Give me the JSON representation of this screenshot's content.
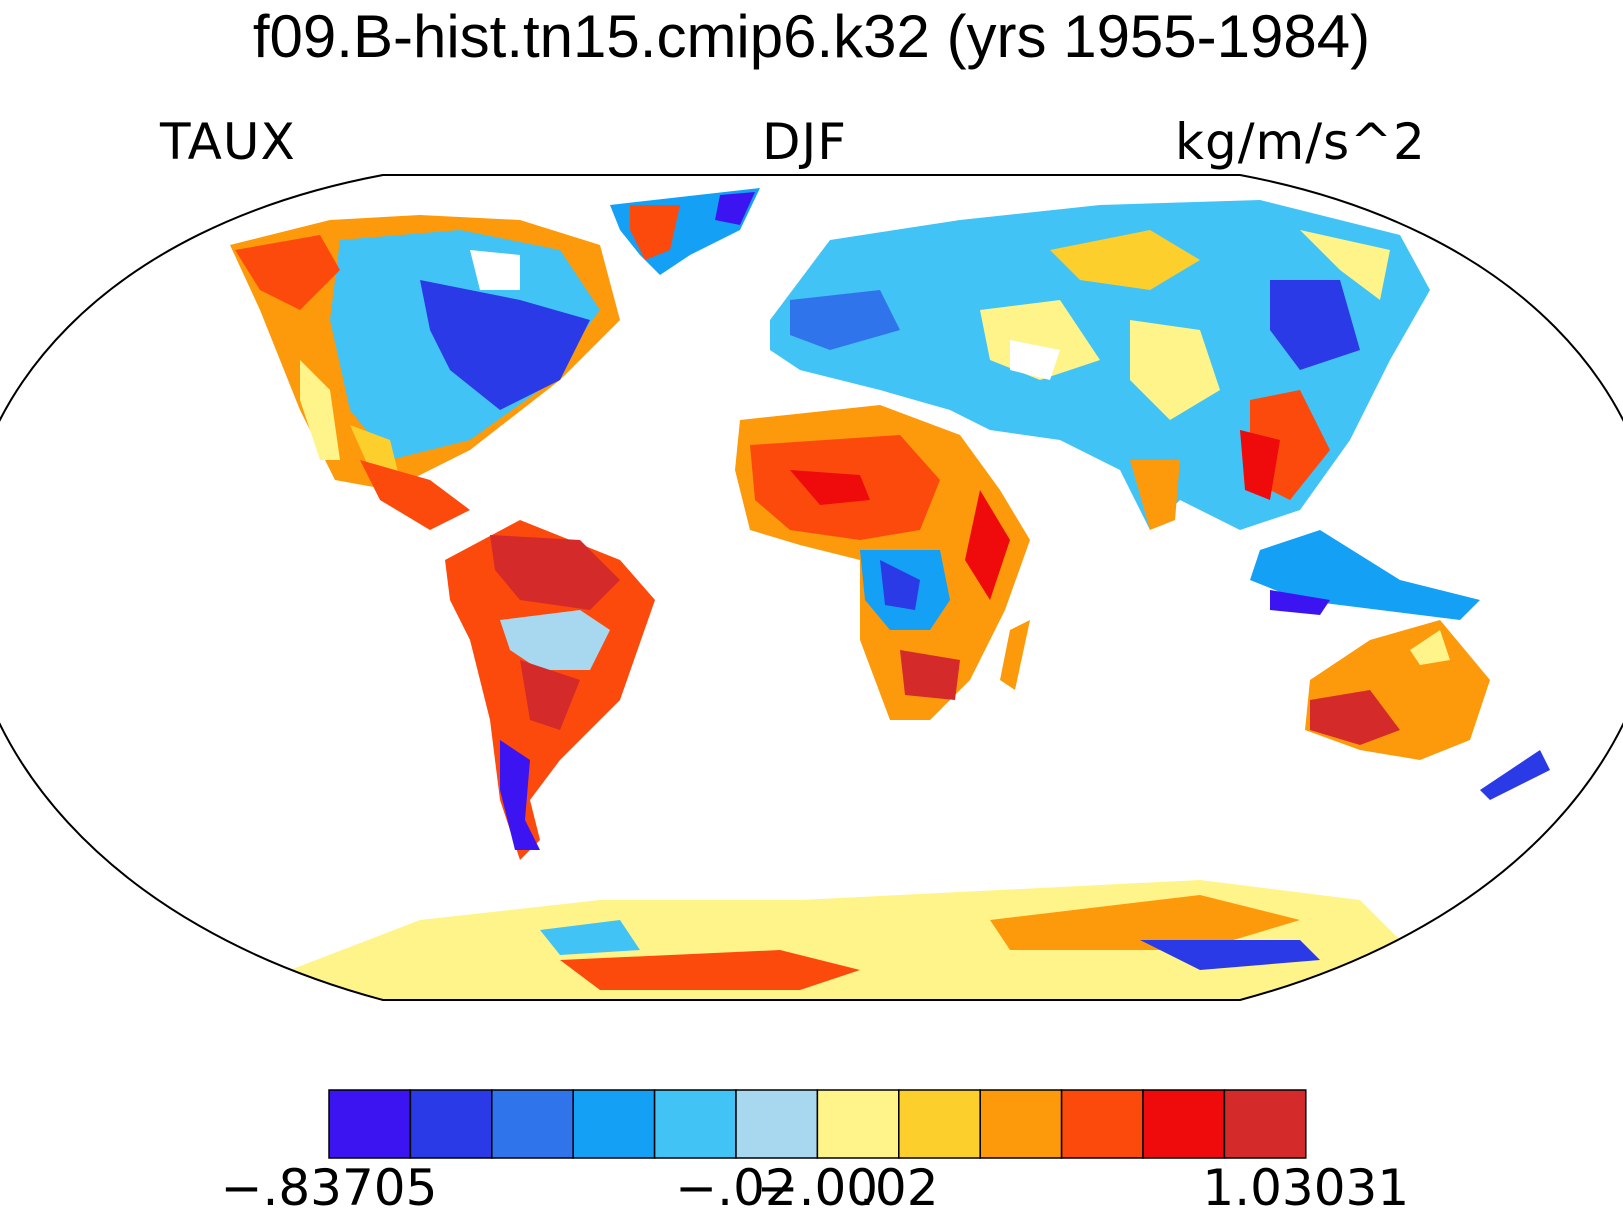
{
  "title": "f09.B-hist.tn15.cmip6.k32 (yrs 1955-1984)",
  "left_label": "TAUX",
  "center_label": "DJF",
  "right_label": "kg/m/s^2",
  "colorbar": {
    "colors": [
      "#3c14f2",
      "#2a3ae6",
      "#2f74ea",
      "#14a0f5",
      "#42c3f5",
      "#a8d8f0",
      "#fff48a",
      "#fdcf2c",
      "#fc9a0b",
      "#fc4a0c",
      "#ef0b0b",
      "#d42a2a"
    ],
    "tick_labels": [
      {
        "text": "−.83705",
        "boundary": 0
      },
      {
        "text": "−.02",
        "boundary": 5
      },
      {
        "text": "−.00",
        "boundary": 6
      },
      {
        "text": ".02",
        "boundary": 7
      },
      {
        "text": "1.03031",
        "boundary": 12
      }
    ]
  }
}
